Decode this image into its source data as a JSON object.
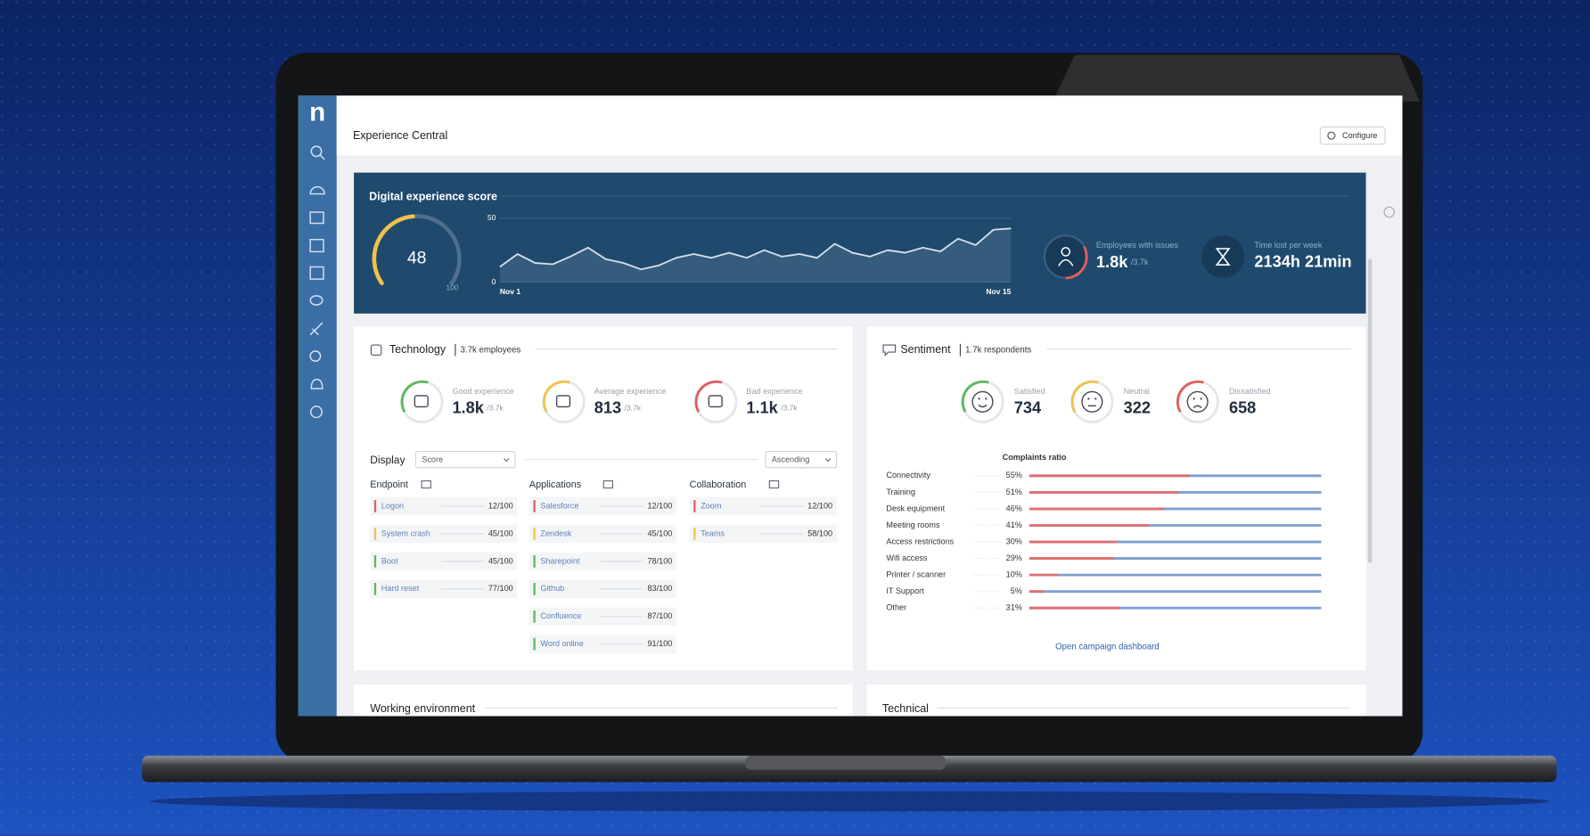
{
  "sidebar": {
    "logo": "n"
  },
  "header": {
    "title": "Experience Central",
    "configure": "Configure"
  },
  "score_panel": {
    "title": "Digital experience score",
    "score": 48,
    "score_max": 100,
    "chart": {
      "type": "line",
      "categories": [
        "Nov 1",
        null,
        null,
        null,
        null,
        null,
        null,
        null,
        null,
        null,
        null,
        null,
        null,
        null,
        null,
        null,
        null,
        null,
        null,
        null,
        null,
        null,
        null,
        null,
        null,
        null,
        null,
        null,
        null,
        "Nov 15"
      ],
      "values": [
        12,
        22,
        15,
        14,
        20,
        27,
        18,
        15,
        10,
        13,
        19,
        22,
        19,
        23,
        19,
        25,
        20,
        22,
        19,
        30,
        23,
        20,
        25,
        23,
        27,
        24,
        34,
        29,
        41,
        42
      ],
      "ylim": [
        0,
        50
      ],
      "yticks": [
        0,
        50
      ],
      "color": "#d6e1ec"
    },
    "employees": {
      "label": "Employees with issues",
      "value": "1.8k",
      "total": "/3.7k"
    },
    "time_lost": {
      "label": "Time lost per week",
      "value": "2134h 21min"
    }
  },
  "technology": {
    "title": "Technology",
    "subtitle": "3.7k employees",
    "metrics": [
      {
        "label": "Good experience",
        "value": "1.8k",
        "total": "/3.7k",
        "color": "#5cb85c"
      },
      {
        "label": "Average experience",
        "value": "813",
        "total": "/3.7k",
        "color": "#f0c24b"
      },
      {
        "label": "Bad experience",
        "value": "1.1k",
        "total": "/3.7k",
        "color": "#e35d5d"
      }
    ],
    "display": {
      "label": "Display",
      "sort_by": "Score",
      "order": "Ascending"
    },
    "groups": [
      {
        "name": "Endpoint",
        "items": [
          {
            "name": "Logon",
            "score": "12/100",
            "color": "#e35d5d"
          },
          {
            "name": "System crash",
            "score": "45/100",
            "color": "#f0c24b"
          },
          {
            "name": "Boot",
            "score": "45/100",
            "color": "#5cb85c"
          },
          {
            "name": "Hard reset",
            "score": "77/100",
            "color": "#5cb85c"
          }
        ]
      },
      {
        "name": "Applications",
        "items": [
          {
            "name": "Salesforce",
            "score": "12/100",
            "color": "#e35d5d"
          },
          {
            "name": "Zendesk",
            "score": "45/100",
            "color": "#f0c24b"
          },
          {
            "name": "Sharepoint",
            "score": "78/100",
            "color": "#5cb85c"
          },
          {
            "name": "Github",
            "score": "83/100",
            "color": "#5cb85c"
          },
          {
            "name": "Confluence",
            "score": "87/100",
            "color": "#5cb85c"
          },
          {
            "name": "Word online",
            "score": "91/100",
            "color": "#5cb85c"
          }
        ]
      },
      {
        "name": "Collaboration",
        "items": [
          {
            "name": "Zoom",
            "score": "12/100",
            "color": "#e35d5d"
          },
          {
            "name": "Teams",
            "score": "58/100",
            "color": "#f0c24b"
          }
        ]
      }
    ]
  },
  "sentiment": {
    "title": "Sentiment",
    "subtitle": "1.7k respondents",
    "metrics": [
      {
        "label": "Satisfied",
        "value": 734,
        "color": "#5cb85c"
      },
      {
        "label": "Neutral",
        "value": 322,
        "color": "#f0c24b"
      },
      {
        "label": "Dissatisfied",
        "value": 658,
        "color": "#e35d5d"
      }
    ],
    "complaints": {
      "title": "Complaints ratio",
      "categories": [
        "Connectivity",
        "Training",
        "Desk equipment",
        "Meeting rooms",
        "Access restrictions",
        "Wifi access",
        "Printer / scanner",
        "IT Support",
        "Other"
      ],
      "values": [
        55,
        51,
        46,
        41,
        30,
        29,
        10,
        5,
        31
      ],
      "value_labels": [
        "55%",
        "51%",
        "46%",
        "41%",
        "30%",
        "29%",
        "10%",
        "5%",
        "31%"
      ],
      "colors": [
        "#e07070",
        "#7d9fd0"
      ]
    },
    "link": "Open campaign dashboard"
  },
  "sections": [
    "Working environment",
    "Technical"
  ]
}
